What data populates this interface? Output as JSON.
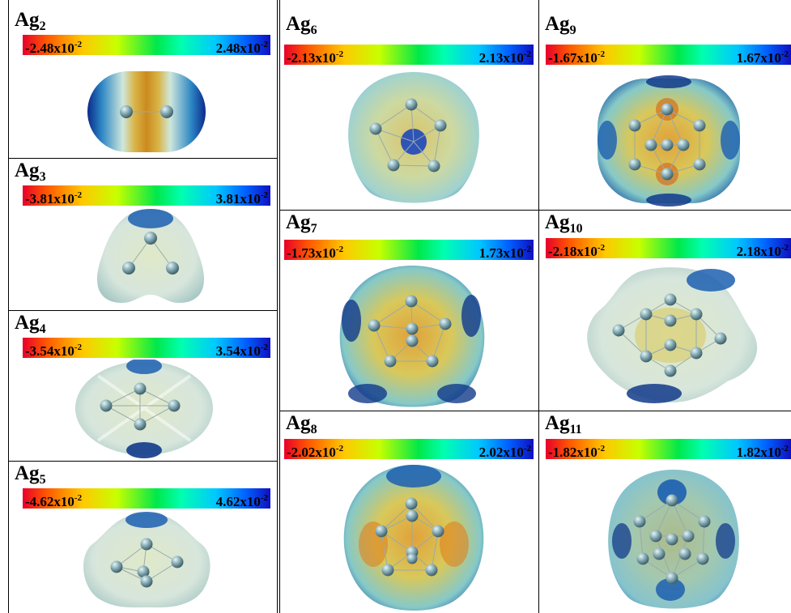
{
  "panels": [
    {
      "id": "ag2",
      "cluster": "Ag",
      "n": "2",
      "min": "-2.48x10",
      "max": "2.48x10",
      "exp": "-2"
    },
    {
      "id": "ag3",
      "cluster": "Ag",
      "n": "3",
      "min": "-3.81x10",
      "max": "3.81x10",
      "exp": "-2"
    },
    {
      "id": "ag4",
      "cluster": "Ag",
      "n": "4",
      "min": "-3.54x10",
      "max": "3.54x10",
      "exp": "-2"
    },
    {
      "id": "ag5",
      "cluster": "Ag",
      "n": "5",
      "min": "-4.62x10",
      "max": "4.62x10",
      "exp": "-2"
    },
    {
      "id": "ag6",
      "cluster": "Ag",
      "n": "6",
      "min": "-2.13x10",
      "max": "2.13x10",
      "exp": "-2"
    },
    {
      "id": "ag7",
      "cluster": "Ag",
      "n": "7",
      "min": "-1.73x10",
      "max": "1.73x10",
      "exp": "-2"
    },
    {
      "id": "ag8",
      "cluster": "Ag",
      "n": "8",
      "min": "-2.02x10",
      "max": "2.02x10",
      "exp": "-2"
    },
    {
      "id": "ag9",
      "cluster": "Ag",
      "n": "9",
      "min": "-1.67x10",
      "max": "1.67x10",
      "exp": "-2"
    },
    {
      "id": "ag10",
      "cluster": "Ag",
      "n": "10",
      "min": "-2.18x10",
      "max": "2.18x10",
      "exp": "-2"
    },
    {
      "id": "ag11",
      "cluster": "Ag",
      "n": "11",
      "min": "-1.82x10",
      "max": "1.82x10",
      "exp": "-2"
    }
  ],
  "colormap": [
    "#e8002a",
    "#ff5a00",
    "#ffc800",
    "#c8ff00",
    "#00e84a",
    "#00ffb0",
    "#00c8ff",
    "#0060ff",
    "#1010c0"
  ]
}
